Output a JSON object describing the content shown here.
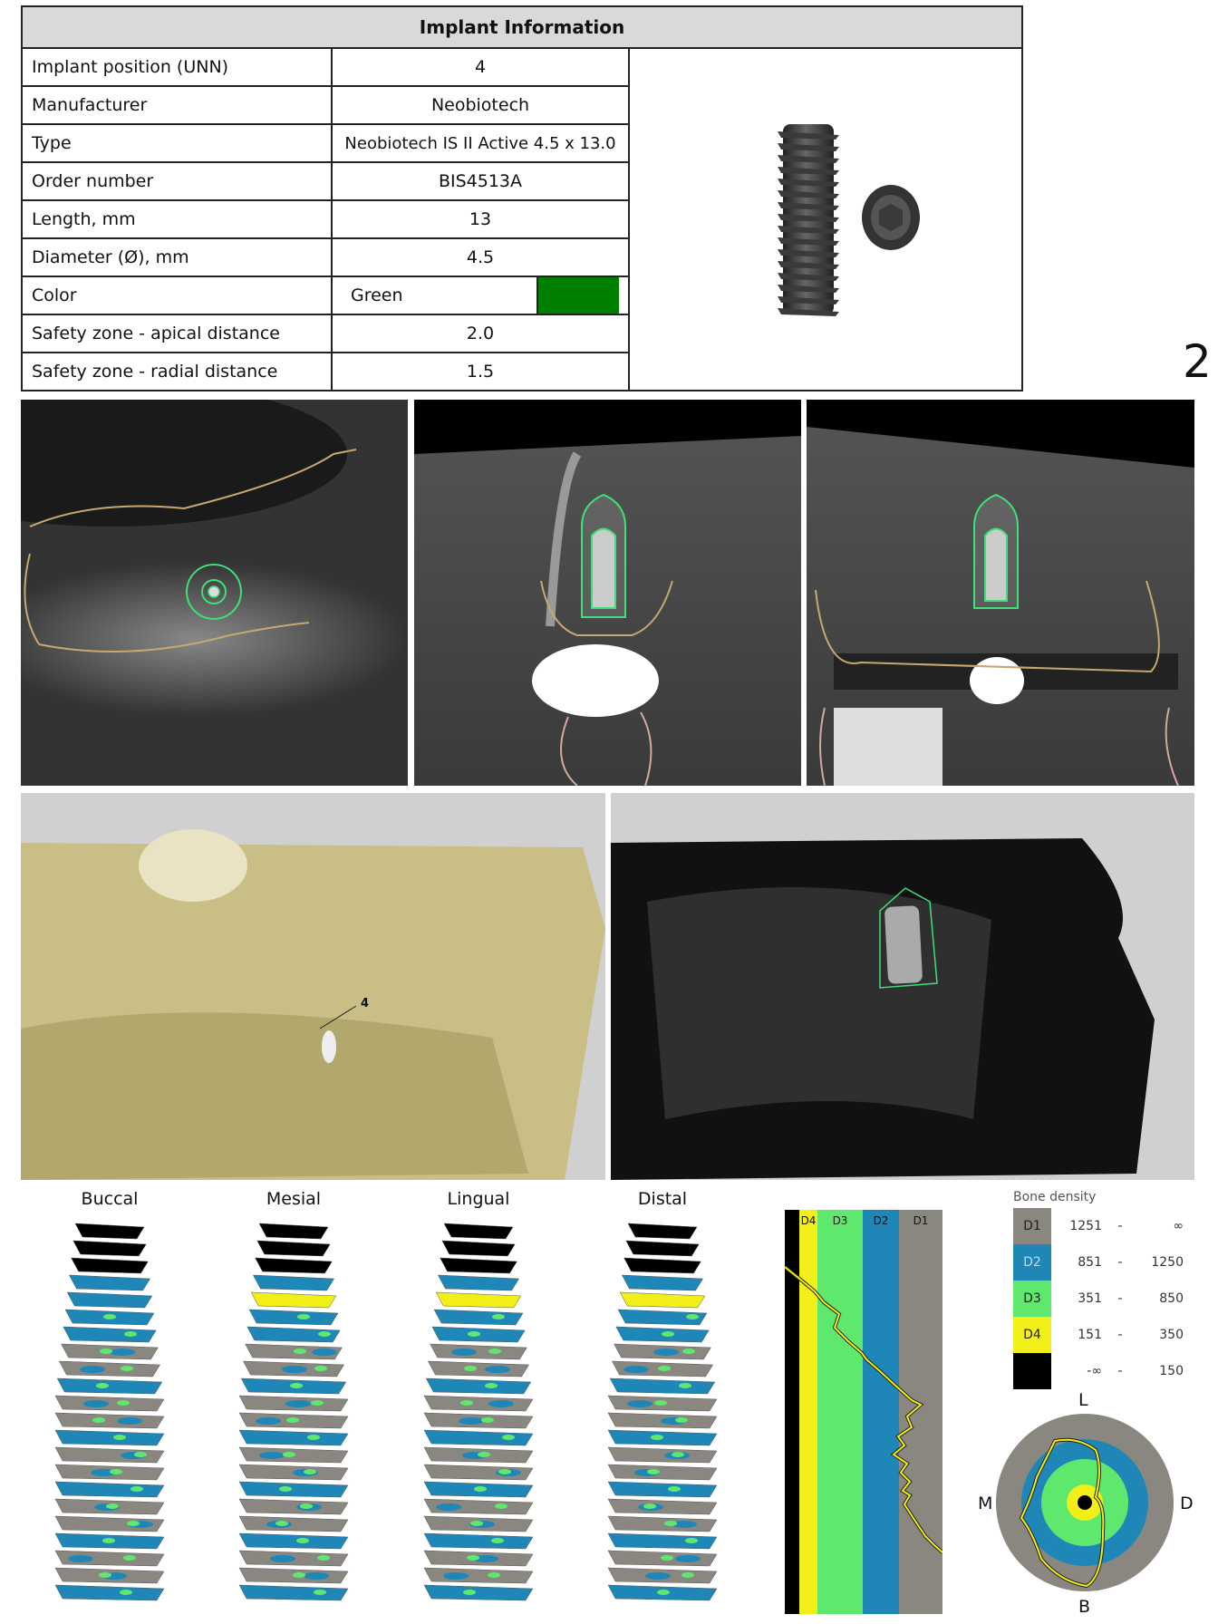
{
  "table": {
    "title": "Implant  Information",
    "rows": [
      {
        "label": "Implant position (UNN)",
        "value": "4"
      },
      {
        "label": "Manufacturer",
        "value": "Neobiotech"
      },
      {
        "label": "Type",
        "value": "Neobiotech IS II Active 4.5 x 13.0"
      },
      {
        "label": "Order number",
        "value": "BIS4513A"
      },
      {
        "label": "Length, mm",
        "value": "13"
      },
      {
        "label": "Diameter (Ø), mm",
        "value": "4.5"
      },
      {
        "label": "Color",
        "value": "Green",
        "swatch": "#008000"
      },
      {
        "label": "Safety zone - apical distance",
        "value": "2.0"
      },
      {
        "label": "Safety zone - radial distance",
        "value": "1.5"
      }
    ]
  },
  "page_number": "2",
  "render_3d": {
    "tooth_label": "4"
  },
  "surface_views": [
    "Buccal",
    "Mesial",
    "Lingual",
    "Distal"
  ],
  "profile_columns": [
    "D4",
    "D3",
    "D2",
    "D1"
  ],
  "legend": {
    "title": "Bone density",
    "items": [
      {
        "class": "D1",
        "from": "1251",
        "to": "∞",
        "color": "#8a8780"
      },
      {
        "class": "D2",
        "from": "851",
        "to": "1250",
        "color": "#1f87b8"
      },
      {
        "class": "D3",
        "from": "351",
        "to": "850",
        "color": "#5ee86e"
      },
      {
        "class": "D4",
        "from": "151",
        "to": "350",
        "color": "#f2ee17"
      },
      {
        "class": "",
        "from": "-∞",
        "to": "150",
        "color": "#000000"
      }
    ]
  },
  "directions": {
    "top": "L",
    "bottom": "B",
    "left": "M",
    "right": "D"
  }
}
